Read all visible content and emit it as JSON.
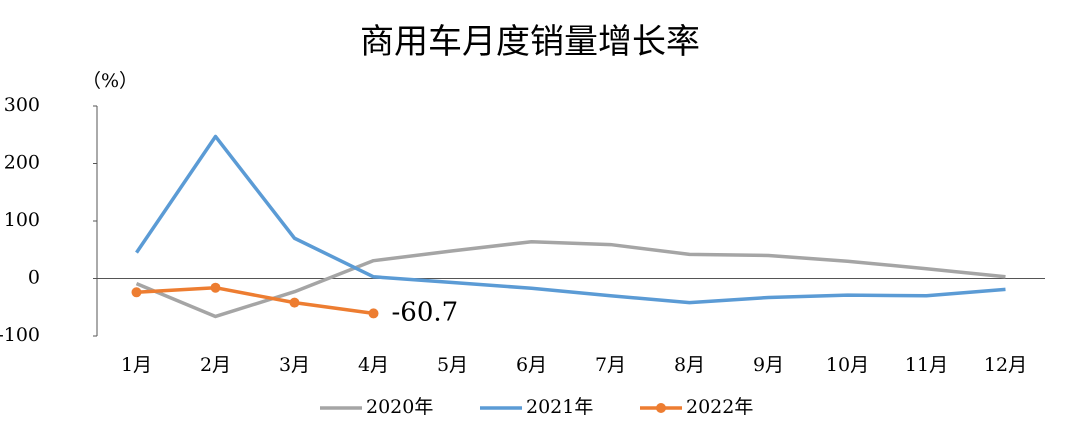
{
  "chart_data": {
    "type": "line",
    "title": "商用车月度销量增长率",
    "y_unit": "（%）",
    "categories": [
      "1月",
      "2月",
      "3月",
      "4月",
      "5月",
      "6月",
      "7月",
      "8月",
      "9月",
      "10月",
      "11月",
      "12月"
    ],
    "series": [
      {
        "name": "2020年",
        "color": "#a5a5a5",
        "values": [
          -9,
          -66,
          -23,
          31,
          48,
          64,
          59,
          42,
          40,
          30,
          17,
          3
        ]
      },
      {
        "name": "2021年",
        "color": "#5b9bd5",
        "values": [
          45,
          247,
          70,
          3,
          -7,
          -17,
          -30,
          -42,
          -33,
          -29,
          -30,
          -19
        ]
      },
      {
        "name": "2022年",
        "color": "#ed7d31",
        "markers": true,
        "values": [
          -24,
          -16,
          -42,
          -60.7,
          null,
          null,
          null,
          null,
          null,
          null,
          null,
          null
        ],
        "label_index": 3,
        "label_color": "#ff0000"
      }
    ],
    "ylim": [
      -100,
      300
    ],
    "yticks": [
      -100,
      0,
      100,
      200,
      300
    ]
  }
}
